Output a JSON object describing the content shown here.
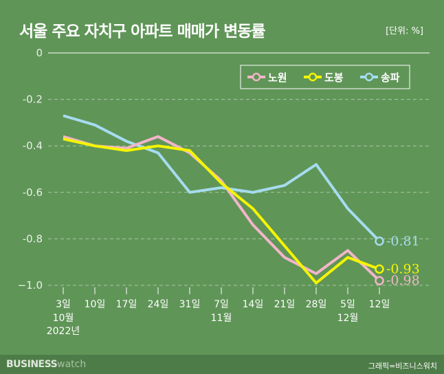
{
  "chart_data": {
    "type": "line",
    "title": "서울 주요 자치구 아파트 매매가 변동률",
    "unit_label": "[단위: %]",
    "categories": [
      "3일",
      "10일",
      "17일",
      "24일",
      "31일",
      "7일",
      "14일",
      "21일",
      "28일",
      "5일",
      "12일"
    ],
    "category_groups": [
      {
        "at": 0,
        "month": "10월",
        "year": "2022년"
      },
      {
        "at": 5,
        "month": "11월",
        "year": ""
      },
      {
        "at": 9,
        "month": "12월",
        "year": ""
      }
    ],
    "yticks": [
      "0",
      "-0.2",
      "-0.4",
      "-0.6",
      "-0.8",
      "−1.0"
    ],
    "ytick_values": [
      0,
      -0.2,
      -0.4,
      -0.6,
      -0.8,
      -1.0
    ],
    "ylim": [
      -1.0,
      0
    ],
    "grid": true,
    "legend_position": "top-right",
    "series": [
      {
        "name": "노원",
        "color": "#f2b5c9",
        "values": [
          -0.36,
          -0.4,
          -0.41,
          -0.36,
          -0.43,
          -0.55,
          -0.74,
          -0.88,
          -0.95,
          -0.85,
          -0.98
        ],
        "end_label": "-0.98"
      },
      {
        "name": "도봉",
        "color": "#f5f500",
        "values": [
          -0.37,
          -0.4,
          -0.42,
          -0.4,
          -0.42,
          -0.56,
          -0.67,
          -0.83,
          -0.99,
          -0.88,
          -0.93
        ],
        "end_label": "-0.93"
      },
      {
        "name": "송파",
        "color": "#a6dcef",
        "values": [
          -0.27,
          -0.31,
          -0.38,
          -0.43,
          -0.6,
          -0.58,
          -0.6,
          -0.57,
          -0.48,
          -0.67,
          -0.81
        ],
        "end_label": "-0.81"
      }
    ]
  },
  "footer": {
    "logo_bold": "BUSINESS",
    "logo_light": "watch",
    "credit": "그래픽=비즈니스워치"
  }
}
